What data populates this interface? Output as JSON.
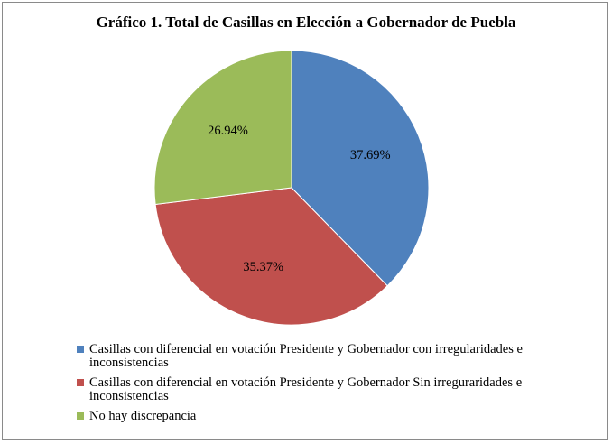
{
  "chart_data": {
    "type": "pie",
    "title": "Gráfico 1. Total de Casillas en Elección a Gobernador de Puebla",
    "legend_position": "bottom",
    "slices": [
      {
        "name": "Casillas con diferencial en votación Presidente y Gobernador con irregularidades e inconsistencias",
        "value": 37.69,
        "label": "37.69%",
        "color": "#4F81BD"
      },
      {
        "name": "Casillas con diferencial en votación Presidente y Gobernador Sin irreguraridades e inconsistencias",
        "value": 35.37,
        "label": "35.37%",
        "color": "#C0504D"
      },
      {
        "name": "No hay discrepancia",
        "value": 26.94,
        "label": "26.94%",
        "color": "#9BBB59"
      }
    ]
  }
}
